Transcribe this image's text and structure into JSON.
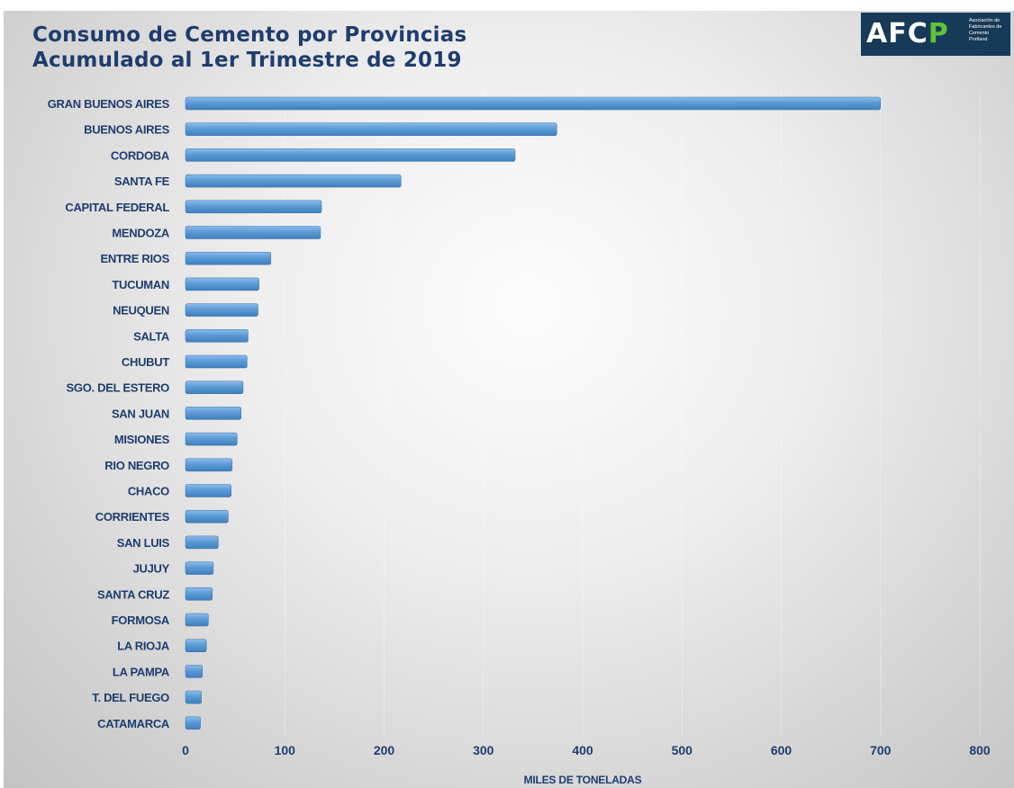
{
  "logo": {
    "text_main": "AFC",
    "text_accent": "P",
    "subtitle": "Asociación de Fabricantes de Cemento Portland"
  },
  "chart_data": {
    "type": "bar",
    "orientation": "horizontal",
    "title": "Consumo de Cemento por Provincias",
    "subtitle": "Acumulado al 1er Trimestre de 2019",
    "xlabel": "MILES DE TONELADAS",
    "ylabel": "",
    "xlim": [
      0,
      800
    ],
    "xticks": [
      0,
      100,
      200,
      300,
      400,
      500,
      600,
      700,
      800
    ],
    "grid": true,
    "bar_color": "#5b9bd5",
    "text_color": "#1e3d6e",
    "categories": [
      "GRAN BUENOS AIRES",
      "BUENOS AIRES",
      "CORDOBA",
      "SANTA FE",
      "CAPITAL FEDERAL",
      "MENDOZA",
      "ENTRE RIOS",
      "TUCUMAN",
      "NEUQUEN",
      "SALTA",
      "CHUBUT",
      "SGO. DEL ESTERO",
      "SAN JUAN",
      "MISIONES",
      "RIO NEGRO",
      "CHACO",
      "CORRIENTES",
      "SAN LUIS",
      "JUJUY",
      "SANTA CRUZ",
      "FORMOSA",
      "LA RIOJA",
      "LA PAMPA",
      "T. DEL FUEGO",
      "CATAMARCA"
    ],
    "values": [
      700,
      374,
      332,
      217,
      137,
      136,
      86,
      74,
      73,
      63,
      62,
      58,
      56,
      52,
      47,
      46,
      43,
      33,
      28,
      27,
      23,
      21,
      17,
      16,
      15
    ]
  }
}
